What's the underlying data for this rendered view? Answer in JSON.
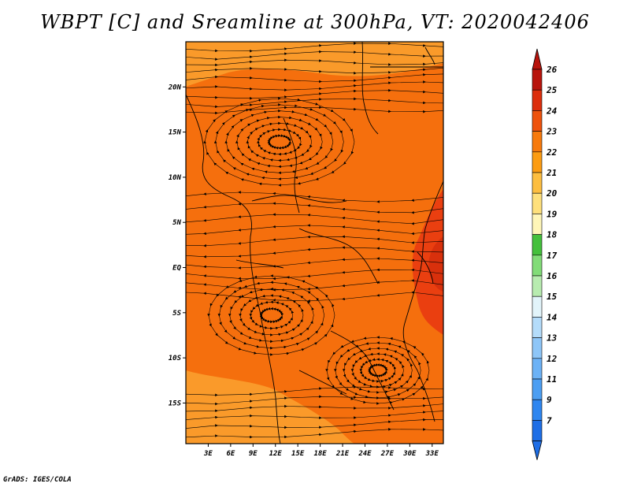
{
  "title": "WBPT [C] and Sreamline at 300hPa, VT: 2020042406",
  "credit": "GrADS: IGES/COLA",
  "map": {
    "lat_labels": [
      "20N",
      "15N",
      "10N",
      "5N",
      "EQ",
      "5S",
      "10S",
      "15S"
    ],
    "lat_values": [
      20,
      15,
      10,
      5,
      0,
      -5,
      -10,
      -15
    ],
    "lon_labels": [
      "3E",
      "6E",
      "9E",
      "12E",
      "15E",
      "18E",
      "21E",
      "24E",
      "27E",
      "30E",
      "33E"
    ],
    "lon_values": [
      3,
      6,
      9,
      12,
      15,
      18,
      21,
      24,
      27,
      30,
      33
    ],
    "lon_range": [
      0,
      34.5
    ],
    "lat_range": [
      -19.5,
      25
    ]
  },
  "colorbar": {
    "labels": [
      "7",
      "9",
      "11",
      "12",
      "13",
      "14",
      "15",
      "16",
      "17",
      "18",
      "19",
      "20",
      "21",
      "22",
      "23",
      "24",
      "25",
      "26"
    ],
    "colors": [
      "#1e6ee6",
      "#2e86f0",
      "#4c9ef2",
      "#6cb2f6",
      "#8ec6f8",
      "#b4dcfa",
      "#e2f4fa",
      "#b8ecb0",
      "#82dc78",
      "#44c03c",
      "#fff6b8",
      "#fee07c",
      "#fdbe40",
      "#fc9c12",
      "#f77a0c",
      "#ee520c",
      "#dc2e0c",
      "#b8140c"
    ],
    "top_arrow_color": "#b8140c",
    "bottom_arrow_color": "#1e6ee6"
  },
  "colors": {
    "field_main": "#f56f0d",
    "field_warm": "#fa9a2a",
    "field_hot": "#ea3f10"
  }
}
